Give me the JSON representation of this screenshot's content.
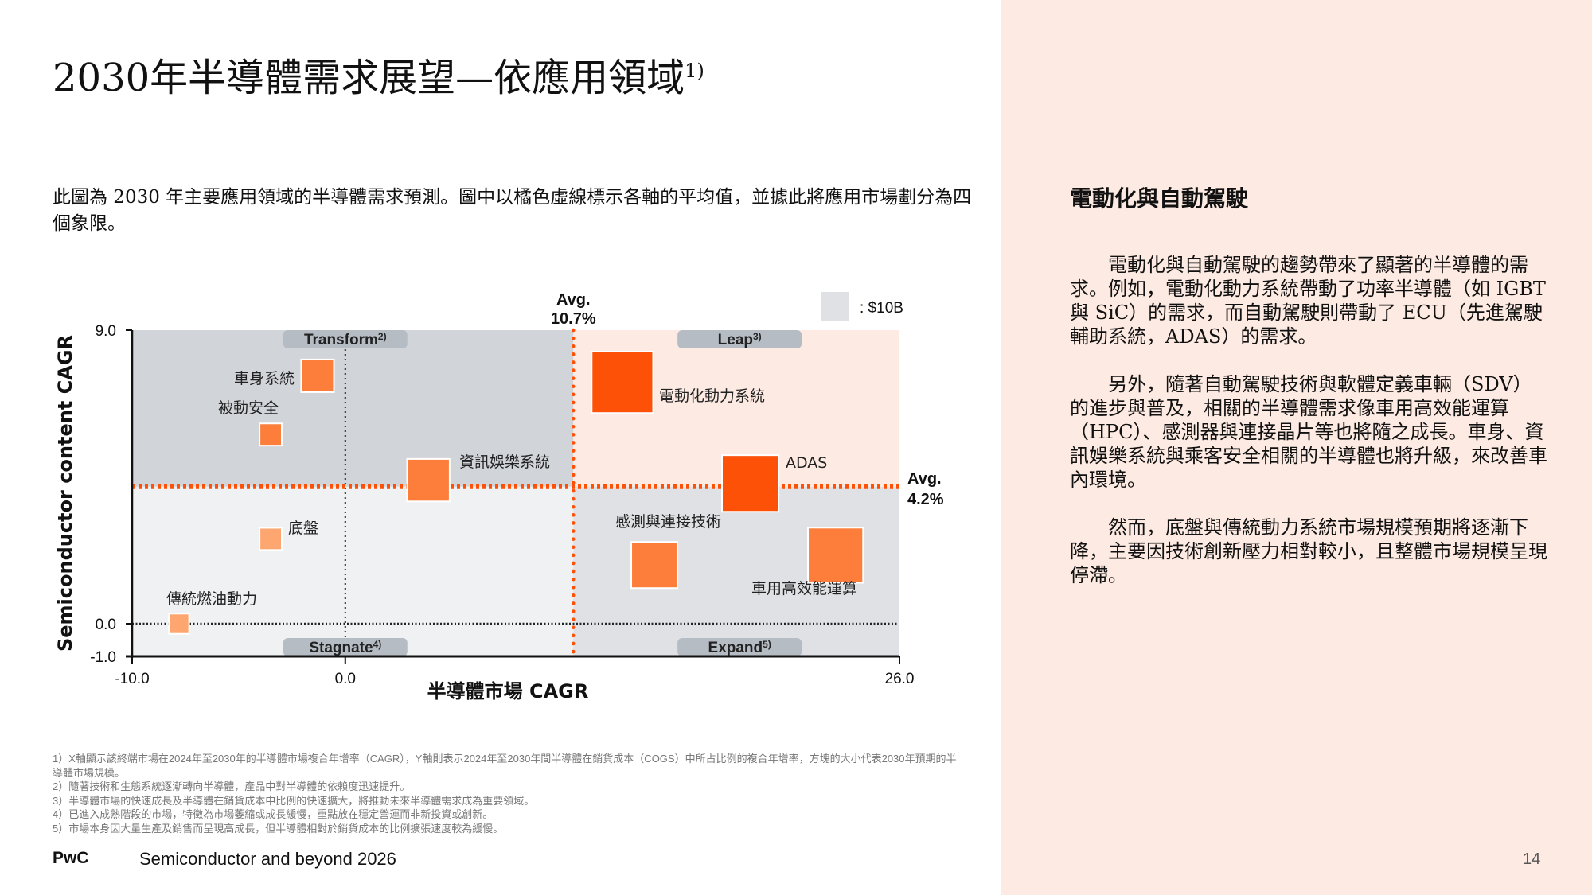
{
  "title": "2030年半導體需求展望—依應用領域",
  "title_sup": "1)",
  "intro": "此圖為 2030 年主要應用領域的半導體需求預測。圖中以橘色虛線標示各軸的平均值，並據此將應用市場劃分為四個象限。",
  "chart_data": {
    "type": "scatter",
    "marker": "square-sized-by-market",
    "xlabel": "半導體市場 CAGR",
    "ylabel": "Semiconductor content CAGR",
    "xlim": [
      -10,
      26
    ],
    "ylim": [
      -1,
      9
    ],
    "x_ticks": [
      "-10.0",
      "0.0",
      "26.0"
    ],
    "y_ticks": [
      "9.0",
      "0.0",
      "-1.0"
    ],
    "grid": false,
    "avg_x": {
      "value": 10.7,
      "label_top": "Avg.",
      "label_bottom": "10.7%"
    },
    "avg_y": {
      "value": 4.2,
      "label_top": "Avg.",
      "label_bottom": "4.2%"
    },
    "size_legend": {
      "value_billion_usd": 10,
      "label": ": $10B"
    },
    "quadrants": [
      {
        "name": "Transform",
        "sup": "2)",
        "color": "#d1d4d9"
      },
      {
        "name": "Leap",
        "sup": "3)",
        "color": "#fdebe3"
      },
      {
        "name": "Stagnate",
        "sup": "4)",
        "color": "#f0f1f3"
      },
      {
        "name": "Expand",
        "sup": "5)",
        "color": "#dfe1e4"
      }
    ],
    "points": [
      {
        "label": "車身系統",
        "x": -1.3,
        "y": 7.6,
        "size_billion_usd": 13,
        "color": "#fd7e3a"
      },
      {
        "label": "被動安全",
        "x": -3.5,
        "y": 5.8,
        "size_billion_usd": 6,
        "color": "#fd7e3a"
      },
      {
        "label": "資訊娛樂系統",
        "x": 3.9,
        "y": 4.4,
        "size_billion_usd": 22,
        "color": "#fd7e3a"
      },
      {
        "label": "電動化動力系統",
        "x": 13.0,
        "y": 7.4,
        "size_billion_usd": 46,
        "color": "#fd5108"
      },
      {
        "label": "ADAS",
        "x": 19.0,
        "y": 4.3,
        "size_billion_usd": 39,
        "color": "#fd5108"
      },
      {
        "label": "感測與連接技術",
        "x": 14.5,
        "y": 1.8,
        "size_billion_usd": 26,
        "color": "#fd7e3a"
      },
      {
        "label": "車用高效能運算",
        "x": 23.0,
        "y": 2.1,
        "size_billion_usd": 37,
        "color": "#fd7e3a"
      },
      {
        "label": "底盤",
        "x": -3.5,
        "y": 2.6,
        "size_billion_usd": 6,
        "color": "#fea66f"
      },
      {
        "label": "傳統燃油動力",
        "x": -7.8,
        "y": 0.0,
        "size_billion_usd": 5,
        "color": "#fea66f"
      }
    ],
    "colors": {
      "avg_line": "#fd5108",
      "tab": "#b6bcc4",
      "legend_box": "#dfe1e4"
    }
  },
  "footnotes": [
    "1）X軸顯示該終端市場在2024年至2030年的半導體市場複合年增率（CAGR），Y軸則表示2024年至2030年間半導體在銷貨成本（COGS）中所占比例的複合年增率，方塊的大小代表2030年預期的半導體市場規模。",
    "2）隨著技術和生態系統逐漸轉向半導體，產品中對半導體的依賴度迅速提升。",
    "3）半導體市場的快速成長及半導體在銷貨成本中比例的快速擴大，將推動未來半導體需求成為重要領域。",
    "4）已進入成熟階段的市場，特徵為市場萎縮或成長緩慢，重點放在穩定營運而非新投資或創新。",
    "5）市場本身因大量生產及銷售而呈現高成長，但半導體相對於銷貨成本的比例擴張速度較為緩慢。"
  ],
  "footer": {
    "brand": "PwC",
    "title": "Semiconductor and beyond 2026",
    "page": "14"
  },
  "side": {
    "heading": "電動化與自動駕駛",
    "paragraphs": [
      "電動化與自動駕駛的趨勢帶來了顯著的半導體的需求。例如，電動化動力系統帶動了功率半導體（如 IGBT 與 SiC）的需求，而自動駕駛則帶動了 ECU（先進駕駛輔助系統，ADAS）的需求。",
      "另外，隨著自動駕駛技術與軟體定義車輛（SDV）的進步與普及，相關的半導體需求像車用高效能運算（HPC）、感測器與連接晶片等也將隨之成長。車身、資訊娛樂系統與乘客安全相關的半導體也將升級，來改善車內環境。",
      "然而，底盤與傳統動力系統市場規模預期將逐漸下降，主要因技術創新壓力相對較小，且整體市場規模呈現停滯。"
    ]
  }
}
